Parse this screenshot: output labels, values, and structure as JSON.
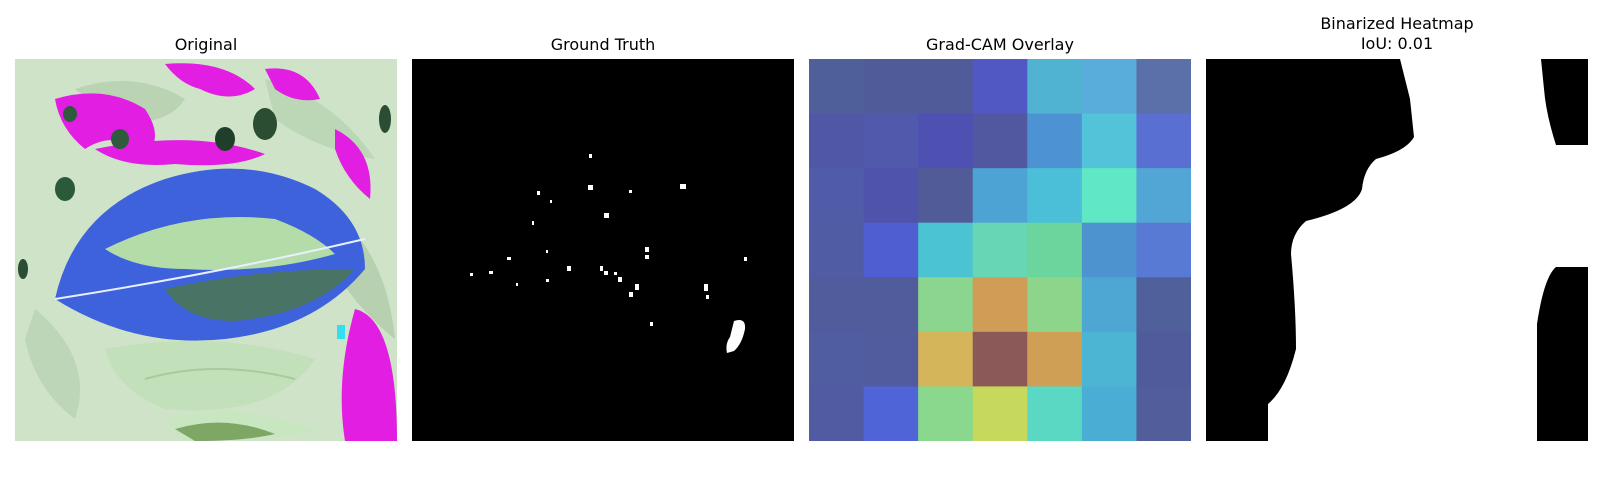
{
  "panels": [
    {
      "title": "Original"
    },
    {
      "title": "Ground Truth"
    },
    {
      "title": "Grad-CAM Overlay"
    },
    {
      "title": "Binarized Heatmap",
      "subtitle": "IoU: 0.01"
    }
  ],
  "colors": {
    "leaf_background": "#cfe6c9",
    "leaf_blue": "#3a62e0",
    "magenta": "#e01be0",
    "mask_white": "#ffffff",
    "mask_black": "#000000"
  },
  "gradcam_grid": [
    [
      "#4f5f9a",
      "#505c9a",
      "#505c9a",
      "#5158c4",
      "#4fb3d1",
      "#59addb",
      "#5b6fa8"
    ],
    [
      "#5058a5",
      "#5059ab",
      "#4f51b2",
      "#5158a0",
      "#4d93d3",
      "#53c3d9",
      "#5a6fd2"
    ],
    [
      "#505ca8",
      "#4f53ac",
      "#505b97",
      "#4ca3d4",
      "#4bbfd7",
      "#5fe7c6",
      "#52a6d5"
    ],
    [
      "#505ca3",
      "#4f5ed1",
      "#4bc3d2",
      "#67d6b4",
      "#6cd59d",
      "#4c94cf",
      "#5879d4"
    ],
    [
      "#515c9c",
      "#505c9b",
      "#8cd58e",
      "#cf9d56",
      "#8dd58a",
      "#4da7d2",
      "#50609b"
    ],
    [
      "#505da1",
      "#505c9d",
      "#d5b55a",
      "#8b5a58",
      "#cf9f56",
      "#4cb5d3",
      "#505b9b"
    ],
    [
      "#505ba1",
      "#4f64d6",
      "#89d88e",
      "#c7d95c",
      "#5bd8c4",
      "#4aaed4",
      "#515e9b"
    ]
  ]
}
